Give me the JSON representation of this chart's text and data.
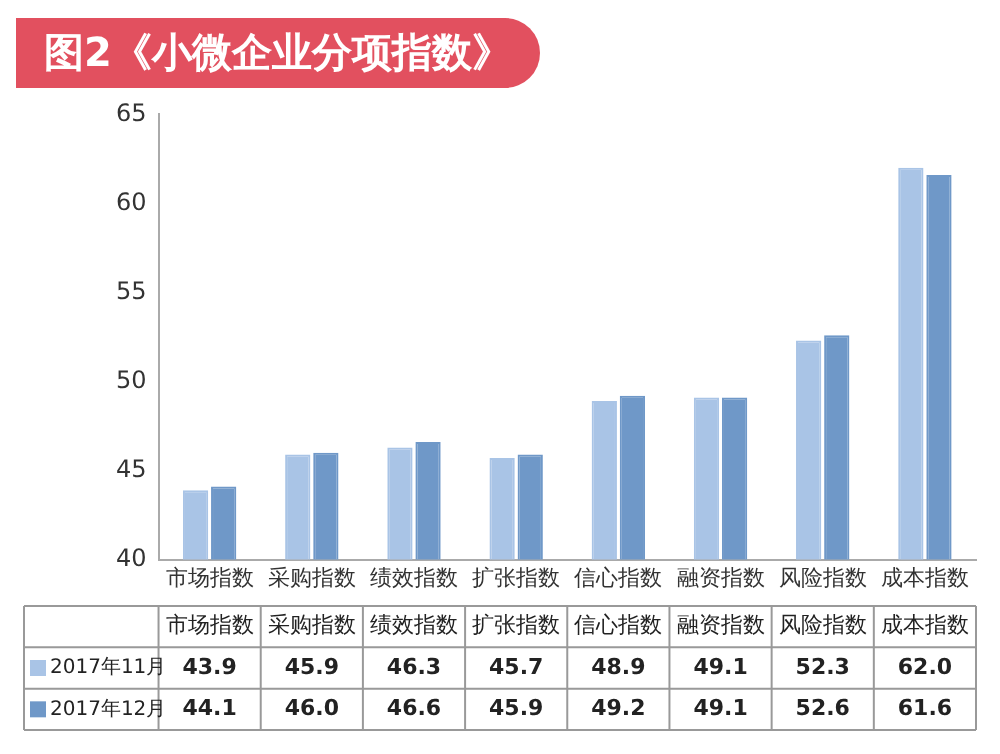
{
  "chart_data": {
    "type": "bar",
    "title": "图2《小微企业分项指数》",
    "categories": [
      "市场指数",
      "采购指数",
      "绩效指数",
      "扩张指数",
      "信心指数",
      "融资指数",
      "风险指数",
      "成本指数"
    ],
    "series": [
      {
        "name": "2017年11月",
        "color": "#a9c4e6",
        "values": [
          43.9,
          45.9,
          46.3,
          45.7,
          48.9,
          49.1,
          52.3,
          62.0
        ],
        "value_labels": [
          "43.9",
          "45.9",
          "46.3",
          "45.7",
          "48.9",
          "49.1",
          "52.3",
          "62.0"
        ]
      },
      {
        "name": "2017年12月",
        "color": "#6f98c8",
        "values": [
          44.1,
          46.0,
          46.6,
          45.9,
          49.2,
          49.1,
          52.6,
          61.6
        ],
        "value_labels": [
          "44.1",
          "46.0",
          "46.6",
          "45.9",
          "49.2",
          "49.1",
          "52.6",
          "61.6"
        ]
      }
    ],
    "ylim": [
      40,
      65
    ],
    "yticks": [
      40,
      45,
      50,
      55,
      60,
      65
    ],
    "grid": false,
    "legend": "bottom"
  }
}
